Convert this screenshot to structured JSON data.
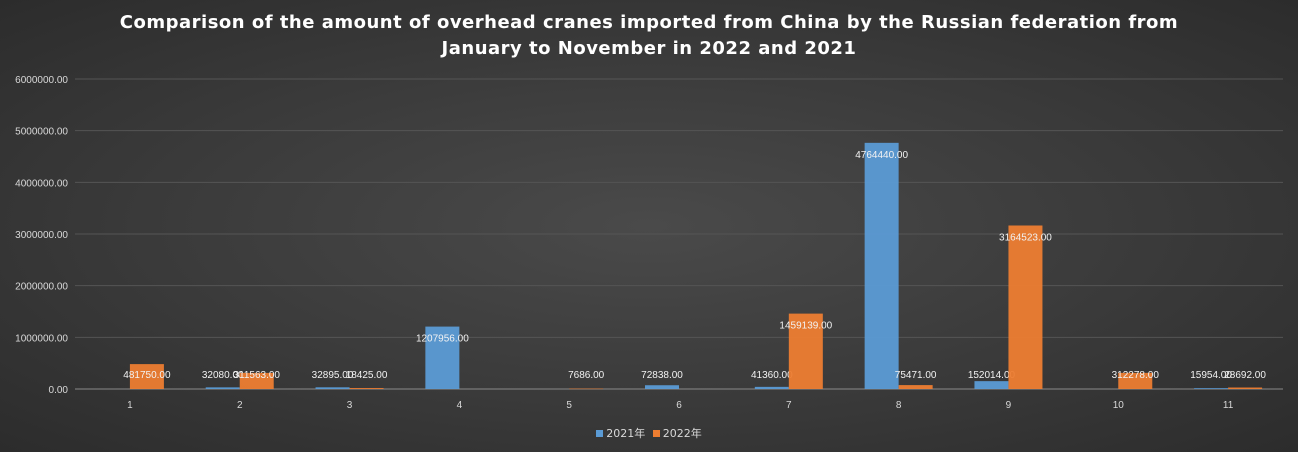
{
  "chart_data": {
    "type": "bar",
    "title_line1": "Comparison of the amount of overhead cranes imported from China by the Russian federation from",
    "title_line2": "January to November in 2022 and 2021",
    "categories": [
      "1",
      "2",
      "3",
      "4",
      "5",
      "6",
      "7",
      "8",
      "9",
      "10",
      "11"
    ],
    "series": [
      {
        "name": "2021年",
        "color": "#5b9bd5",
        "values": [
          null,
          32080.0,
          32895.0,
          1207956.0,
          null,
          72838.0,
          41360.0,
          4764440.0,
          152014.0,
          null,
          15954.0
        ],
        "labels": [
          "",
          "32080.00",
          "32895.00",
          "1207956.00",
          "",
          "72838.00",
          "41360.00",
          "4764440.00",
          "152014.00",
          "",
          "15954.00"
        ]
      },
      {
        "name": "2022年",
        "color": "#ed7d31",
        "values": [
          481750.0,
          311563.0,
          18425.0,
          null,
          7686.0,
          null,
          1459139.0,
          75471.0,
          3164523.0,
          312278.0,
          28692.0
        ],
        "labels": [
          "481750.00",
          "311563.00",
          "18425.00",
          "",
          "7686.00",
          "",
          "1459139.00",
          "75471.00",
          "3164523.00",
          "312278.00",
          "28692.00"
        ]
      }
    ],
    "y_ticks": [
      "0.00",
      "1000000.00",
      "2000000.00",
      "3000000.00",
      "4000000.00",
      "5000000.00",
      "6000000.00"
    ],
    "ylim": [
      0,
      6000000
    ],
    "grid": true,
    "legend_position": "bottom"
  }
}
